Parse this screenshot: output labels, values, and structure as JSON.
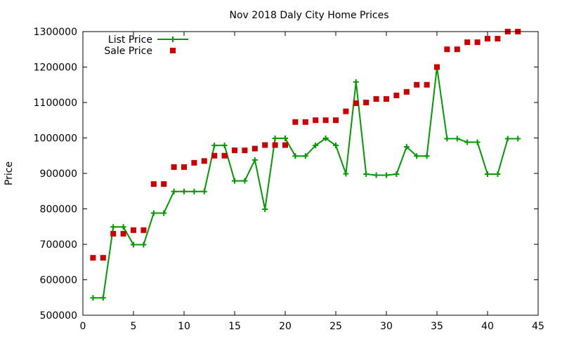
{
  "chart_data": {
    "type": "line",
    "title": "Nov 2018 Daly City Home Prices",
    "xlabel": "",
    "ylabel": "Price",
    "xlim": [
      0,
      45
    ],
    "ylim": [
      500000,
      1300000
    ],
    "xticks": [
      "0",
      "5",
      "10",
      "15",
      "20",
      "25",
      "30",
      "35",
      "40",
      "45"
    ],
    "yticks": [
      "500000",
      "600000",
      "700000",
      "800000",
      "900000",
      "1000000",
      "1100000",
      "1200000",
      "1300000"
    ],
    "grid": false,
    "legend_position": "top-left",
    "series": [
      {
        "name": "List Price",
        "style": "linespoints",
        "color": "#009900",
        "marker": "plus",
        "x": [
          1,
          2,
          3,
          4,
          5,
          6,
          7,
          8,
          9,
          10,
          11,
          12,
          13,
          14,
          15,
          16,
          17,
          18,
          19,
          20,
          21,
          22,
          23,
          24,
          25,
          26,
          27,
          28,
          29,
          30,
          31,
          32,
          33,
          34,
          35,
          36,
          37,
          38,
          39,
          40,
          41,
          42,
          43
        ],
        "values": [
          549000,
          549000,
          749000,
          749000,
          699000,
          699000,
          788000,
          788000,
          849000,
          849000,
          849000,
          849000,
          979000,
          979000,
          879000,
          879000,
          938000,
          799000,
          999000,
          999000,
          949000,
          949000,
          979000,
          999000,
          979000,
          899000,
          1158000,
          898000,
          895000,
          895000,
          898000,
          975000,
          949000,
          949000,
          1199000,
          998000,
          998000,
          988000,
          988000,
          898000,
          898000,
          998000,
          998000
        ]
      },
      {
        "name": "Sale Price",
        "style": "points",
        "color": "#cc0000",
        "marker": "square",
        "x": [
          1,
          2,
          3,
          4,
          5,
          6,
          7,
          8,
          9,
          10,
          11,
          12,
          13,
          14,
          15,
          16,
          17,
          18,
          19,
          20,
          21,
          22,
          23,
          24,
          25,
          26,
          27,
          28,
          29,
          30,
          31,
          32,
          33,
          34,
          35,
          36,
          37,
          38,
          39,
          40,
          41,
          42,
          43
        ],
        "values": [
          662000,
          662000,
          730000,
          730000,
          740000,
          740000,
          870000,
          870000,
          918000,
          918000,
          930000,
          935000,
          950000,
          950000,
          965000,
          965000,
          970000,
          980000,
          980000,
          980000,
          1045000,
          1045000,
          1050000,
          1050000,
          1050000,
          1075000,
          1098000,
          1100000,
          1110000,
          1110000,
          1120000,
          1130000,
          1150000,
          1150000,
          1200000,
          1250000,
          1250000,
          1270000,
          1270000,
          1280000,
          1280000,
          1300000,
          1300000
        ]
      }
    ]
  }
}
